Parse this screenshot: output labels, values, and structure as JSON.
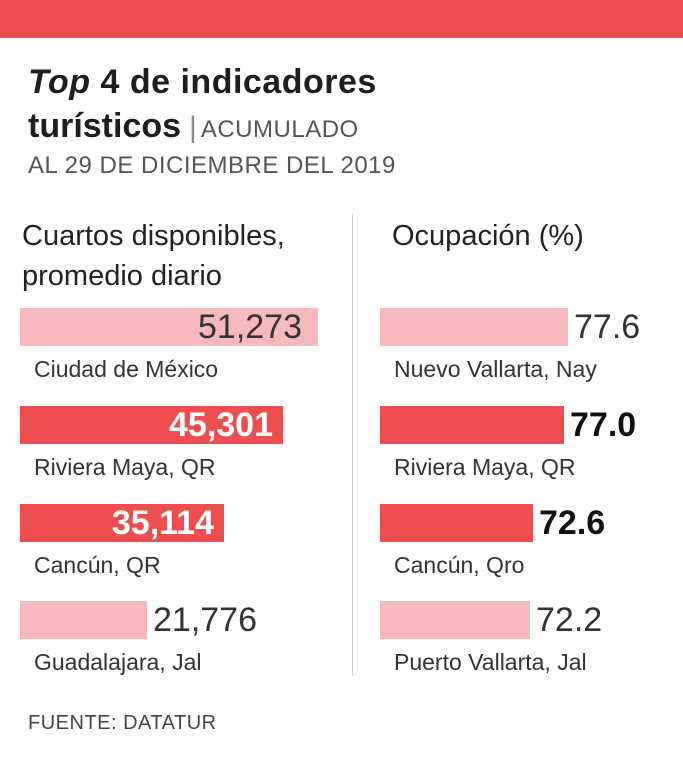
{
  "title_italic": "Top",
  "title_rest": " 4 de indicadores",
  "title_line2": "turísticos",
  "title_divider": "|",
  "title_tag": "ACUMULADO",
  "subtitle": "AL 29 DE DICIEMBRE DEL 2019",
  "source": "FUENTE: DATATUR",
  "colors": {
    "accent": "#ee4e4f",
    "light": "#f7b9bb"
  },
  "chart_data": [
    {
      "type": "bar",
      "orientation": "horizontal",
      "title_line1": "Cuartos disponibles,",
      "title_line2": "promedio diario",
      "categories": [
        "Ciudad de México",
        "Riviera Maya, QR",
        "Cancún, QR",
        "Guadalajara, Jal"
      ],
      "values": [
        51273,
        45301,
        35114,
        21776
      ],
      "labels": [
        "51,273",
        "45,301",
        "35,114",
        "21,776"
      ],
      "highlight": [
        false,
        true,
        true,
        false
      ]
    },
    {
      "type": "bar",
      "orientation": "horizontal",
      "title_line1": "Ocupación (%)",
      "categories": [
        "Nuevo Vallarta, Nay",
        "Riviera Maya, QR",
        "Cancún, Qro",
        "Puerto Vallarta, Jal"
      ],
      "values": [
        77.6,
        77.0,
        72.6,
        72.2
      ],
      "labels": [
        "77.6",
        "77.0",
        "72.6",
        "72.2"
      ],
      "highlight": [
        false,
        true,
        true,
        false
      ]
    }
  ]
}
